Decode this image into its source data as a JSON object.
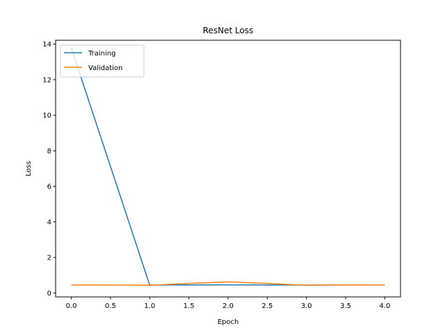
{
  "chart_data": {
    "type": "line",
    "title": "ResNet Loss",
    "xlabel": "Epoch",
    "ylabel": "Loss",
    "x": [
      0,
      1,
      2,
      3,
      4
    ],
    "xlim": [
      -0.2,
      4.2
    ],
    "ylim": [
      -0.22,
      14.22
    ],
    "xticks": [
      "0.0",
      "0.5",
      "1.0",
      "1.5",
      "2.0",
      "2.5",
      "3.0",
      "3.5",
      "4.0"
    ],
    "yticks": [
      "0",
      "2",
      "4",
      "6",
      "8",
      "10",
      "12",
      "14"
    ],
    "legend_position": "top-left",
    "grid": false,
    "series": [
      {
        "name": "Training",
        "color": "#1f77b4",
        "values": [
          13.78,
          0.45,
          0.46,
          0.45,
          0.46
        ]
      },
      {
        "name": "Validation",
        "color": "#ff7f0e",
        "values": [
          0.46,
          0.44,
          0.63,
          0.44,
          0.46
        ]
      }
    ]
  }
}
